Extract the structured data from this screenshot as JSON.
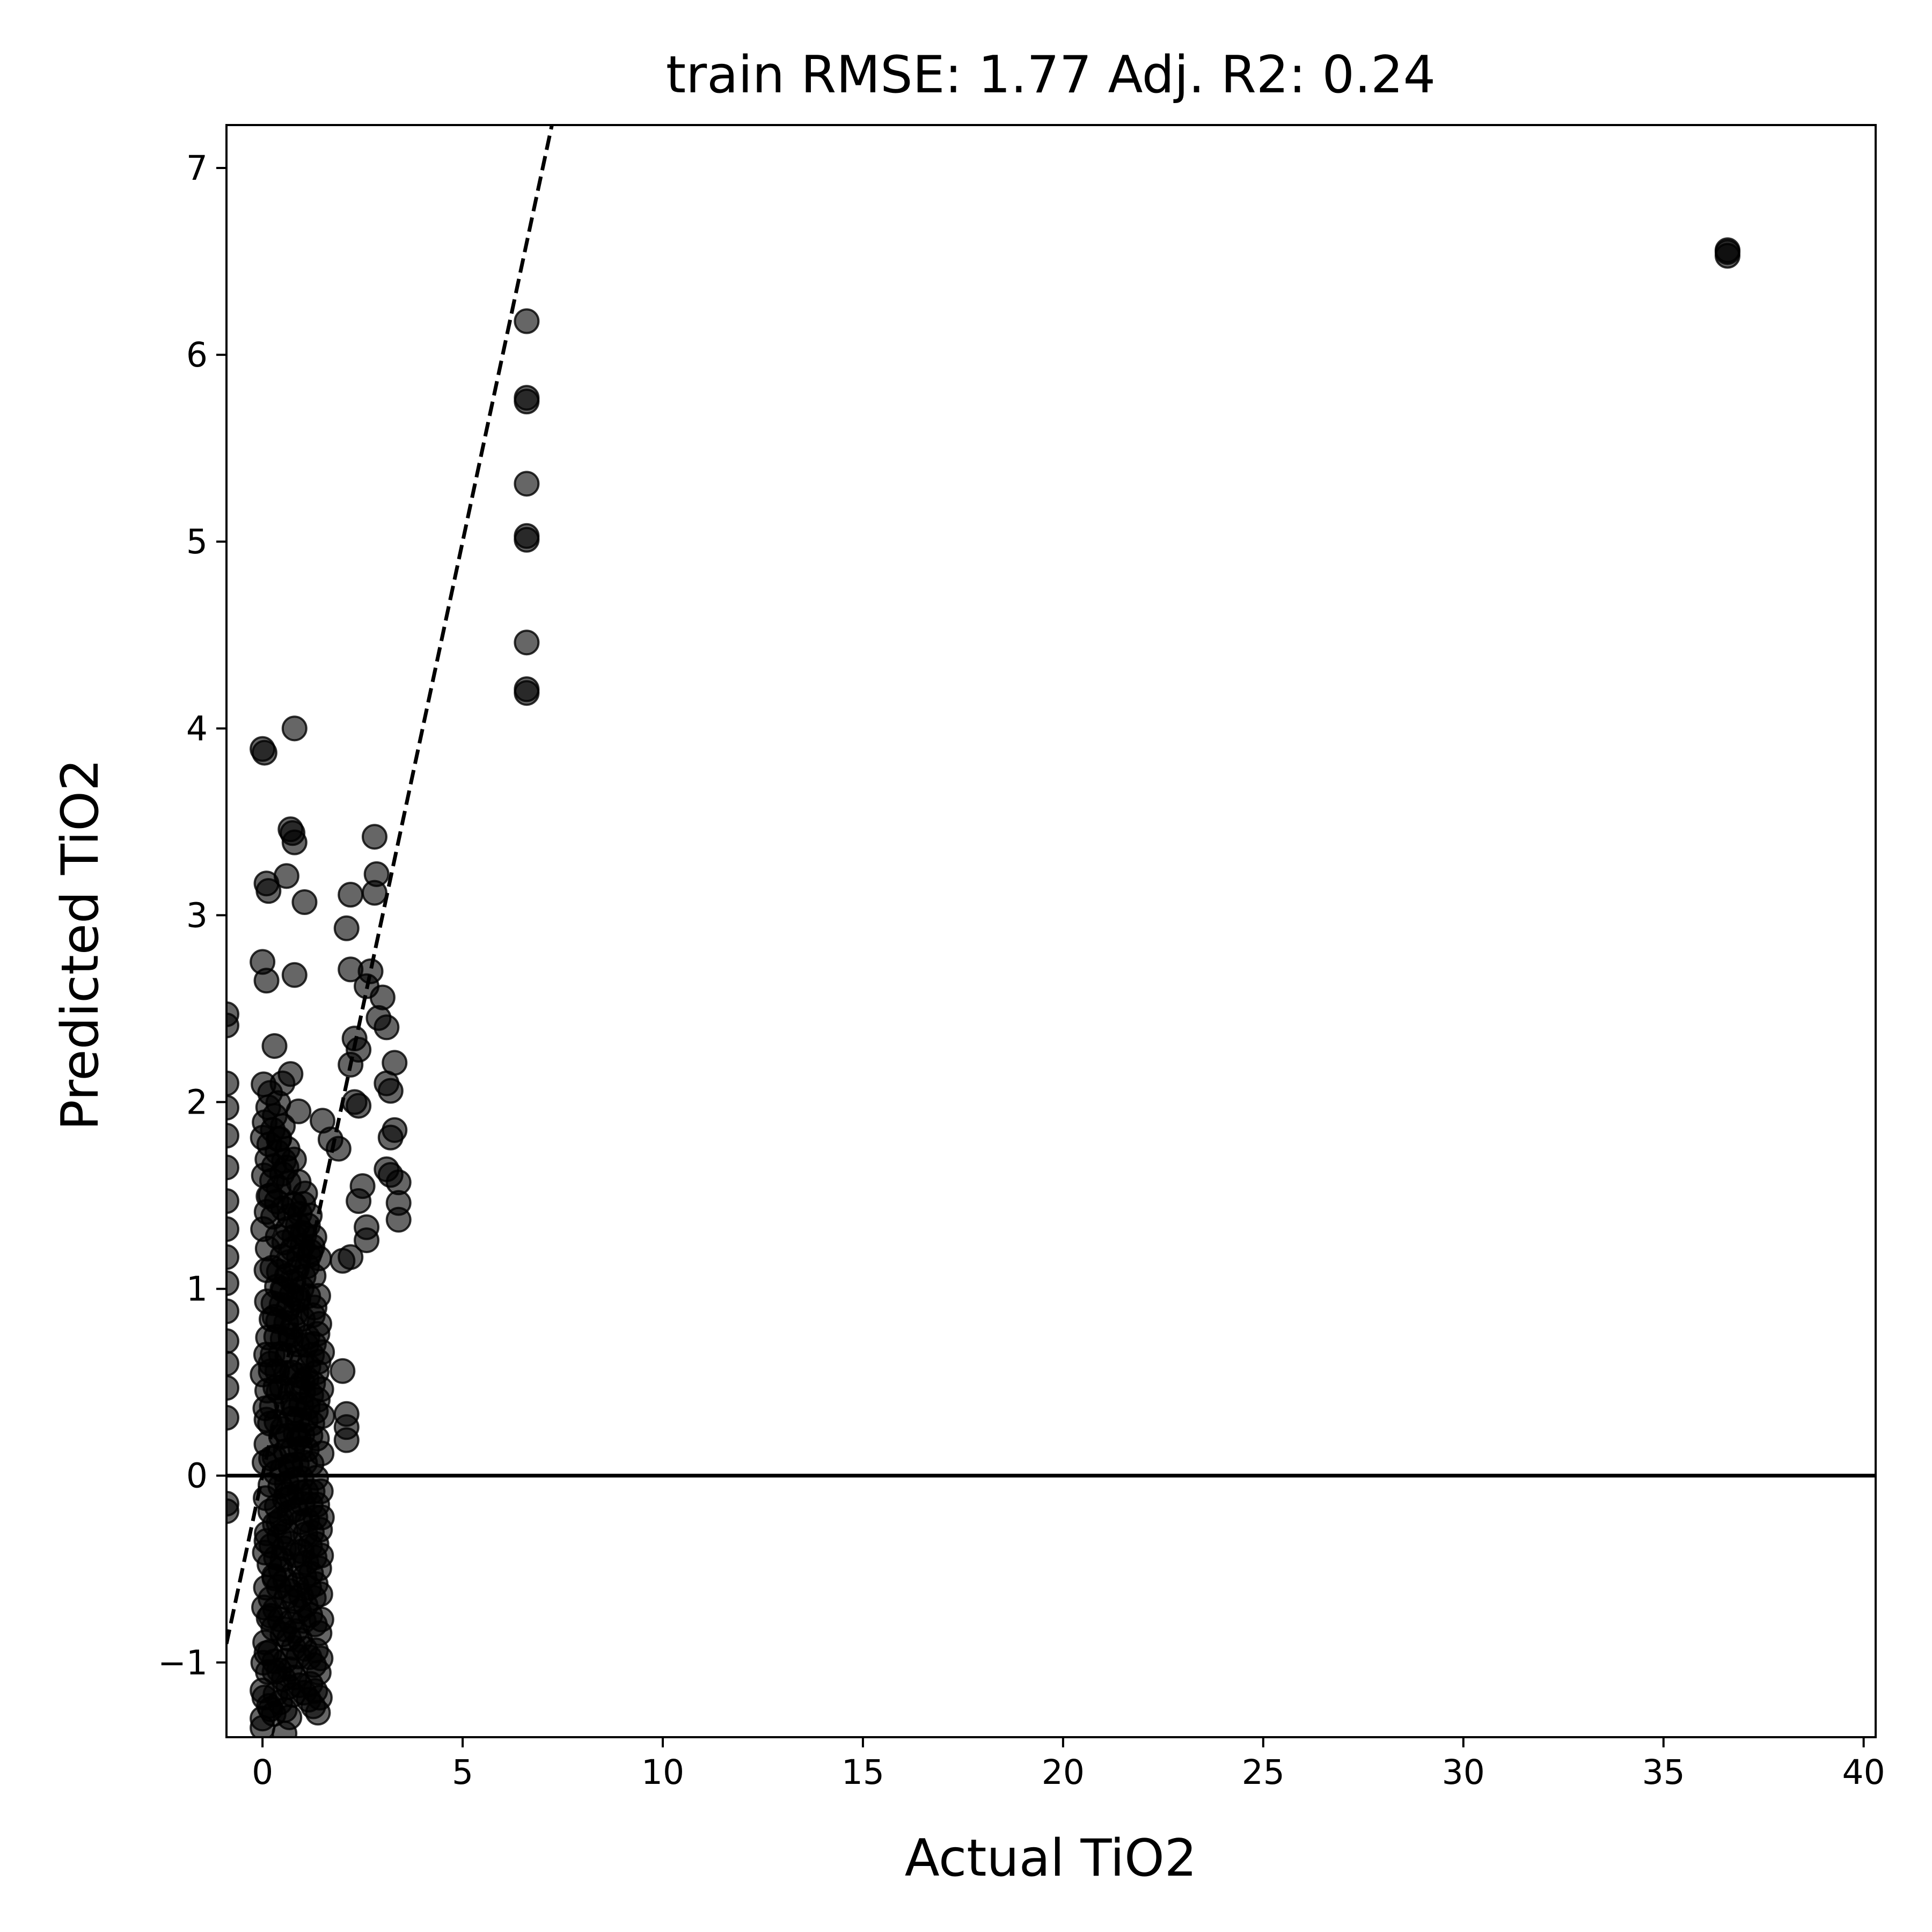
{
  "chart_data": {
    "type": "scatter",
    "title": "train RMSE: 1.77    Adj. R2: 0.24",
    "xlabel": "Actual TiO2",
    "ylabel": "Predicted TiO2",
    "xlim": [
      -0.9,
      40.3
    ],
    "ylim": [
      -1.4,
      7.23
    ],
    "xticks": [
      0,
      5,
      10,
      15,
      20,
      25,
      30,
      35,
      40
    ],
    "yticks": [
      -1,
      0,
      1,
      2,
      3,
      4,
      5,
      6,
      7
    ],
    "xtick_labels": [
      "0",
      "5",
      "10",
      "15",
      "20",
      "25",
      "30",
      "35",
      "40"
    ],
    "ytick_labels": [
      "−1",
      "0",
      "1",
      "2",
      "3",
      "4",
      "5",
      "6",
      "7"
    ],
    "grid": false,
    "reference_lines": [
      {
        "kind": "identity",
        "style": "dashed",
        "color": "#000000",
        "from": [
          -0.9,
          -0.9
        ],
        "to": [
          7.23,
          7.23
        ]
      },
      {
        "kind": "horizontal",
        "style": "solid",
        "color": "#000000",
        "y": 0
      }
    ],
    "marker_color": "#000000",
    "marker_alpha": 0.6,
    "series": [
      {
        "points": [
          [
            36.6,
            6.55
          ],
          [
            36.6,
            6.53
          ],
          [
            36.6,
            6.56
          ],
          [
            6.6,
            6.18
          ],
          [
            6.6,
            5.77
          ],
          [
            6.6,
            5.75
          ],
          [
            6.6,
            5.31
          ],
          [
            6.6,
            5.03
          ],
          [
            6.6,
            5.01
          ],
          [
            6.6,
            4.46
          ],
          [
            6.6,
            4.21
          ],
          [
            6.6,
            4.19
          ],
          [
            0.0,
            3.89
          ],
          [
            0.05,
            3.87
          ],
          [
            0.8,
            4.0
          ],
          [
            0.7,
            3.46
          ],
          [
            0.75,
            3.44
          ],
          [
            0.8,
            3.39
          ],
          [
            0.6,
            3.21
          ],
          [
            1.05,
            3.07
          ],
          [
            0.1,
            3.17
          ],
          [
            0.15,
            3.13
          ],
          [
            0.0,
            2.75
          ],
          [
            0.1,
            2.65
          ],
          [
            0.8,
            2.68
          ],
          [
            2.8,
            3.42
          ],
          [
            2.85,
            3.22
          ],
          [
            2.8,
            3.12
          ],
          [
            2.2,
            3.11
          ],
          [
            2.1,
            2.93
          ],
          [
            2.2,
            2.71
          ],
          [
            2.7,
            2.7
          ],
          [
            2.6,
            2.62
          ],
          [
            3.0,
            2.56
          ],
          [
            2.9,
            2.45
          ],
          [
            3.1,
            2.4
          ],
          [
            2.3,
            2.34
          ],
          [
            2.4,
            2.28
          ],
          [
            2.2,
            2.2
          ],
          [
            3.3,
            2.21
          ],
          [
            3.1,
            2.1
          ],
          [
            3.2,
            2.06
          ],
          [
            2.3,
            2.0
          ],
          [
            2.4,
            1.98
          ],
          [
            3.3,
            1.85
          ],
          [
            3.2,
            1.81
          ],
          [
            3.1,
            1.64
          ],
          [
            3.2,
            1.61
          ],
          [
            3.4,
            1.57
          ],
          [
            3.4,
            1.46
          ],
          [
            3.4,
            1.37
          ],
          [
            2.5,
            1.55
          ],
          [
            2.6,
            1.33
          ],
          [
            2.6,
            1.26
          ],
          [
            2.4,
            1.47
          ],
          [
            2.0,
            1.15
          ],
          [
            2.2,
            1.17
          ],
          [
            1.9,
            1.75
          ],
          [
            1.7,
            1.8
          ],
          [
            1.5,
            1.9
          ],
          [
            2.0,
            0.56
          ],
          [
            2.1,
            0.33
          ],
          [
            2.1,
            0.26
          ],
          [
            2.1,
            0.19
          ],
          [
            -0.9,
            2.47
          ],
          [
            -0.9,
            2.41
          ],
          [
            -0.9,
            2.1
          ],
          [
            -0.9,
            1.97
          ],
          [
            -0.9,
            1.82
          ],
          [
            -0.9,
            1.65
          ],
          [
            -0.9,
            1.47
          ],
          [
            -0.9,
            1.32
          ],
          [
            -0.9,
            1.17
          ],
          [
            -0.9,
            1.03
          ],
          [
            -0.9,
            0.88
          ],
          [
            -0.9,
            0.72
          ],
          [
            -0.9,
            0.6
          ],
          [
            -0.9,
            0.47
          ],
          [
            -0.9,
            0.31
          ],
          [
            -0.9,
            -0.15
          ],
          [
            -0.9,
            -0.19
          ],
          [
            0.3,
            2.3
          ],
          [
            0.5,
            2.1
          ],
          [
            0.7,
            2.15
          ],
          [
            0.9,
            1.95
          ],
          [
            0.4,
            1.8
          ],
          [
            0.6,
            1.65
          ],
          [
            0.2,
            1.5
          ],
          [
            0.8,
            1.45
          ],
          [
            1.0,
            1.3
          ],
          [
            1.2,
            1.2
          ],
          [
            0.1,
            1.1
          ],
          [
            0.5,
            1.0
          ],
          [
            0.9,
            0.95
          ],
          [
            1.3,
            0.9
          ],
          [
            0.3,
            0.85
          ],
          [
            0.7,
            0.75
          ],
          [
            1.1,
            0.7
          ],
          [
            0.2,
            0.6
          ],
          [
            0.6,
            0.55
          ],
          [
            1.0,
            0.5
          ],
          [
            0.4,
            0.45
          ],
          [
            0.8,
            0.35
          ],
          [
            0.1,
            0.3
          ],
          [
            0.5,
            0.25
          ],
          [
            0.9,
            0.2
          ],
          [
            0.3,
            0.1
          ],
          [
            0.7,
            0.05
          ],
          [
            0.2,
            -0.05
          ],
          [
            0.6,
            -0.1
          ],
          [
            1.0,
            -0.15
          ],
          [
            0.4,
            -0.25
          ],
          [
            0.1,
            -0.35
          ],
          [
            0.5,
            -0.45
          ],
          [
            0.3,
            -0.55
          ],
          [
            0.6,
            -0.65
          ],
          [
            0.2,
            -0.75
          ],
          [
            0.5,
            -0.85
          ],
          [
            0.1,
            -0.95
          ],
          [
            0.3,
            -1.05
          ],
          [
            0.0,
            -1.15
          ],
          [
            0.2,
            -1.25
          ],
          [
            0.0,
            -1.35
          ],
          [
            0.55,
            -1.38
          ]
        ]
      }
    ],
    "cluster_note": "dense overlapping points between x≈0 and x≈1.5, y≈-1.4 to 2.3"
  }
}
